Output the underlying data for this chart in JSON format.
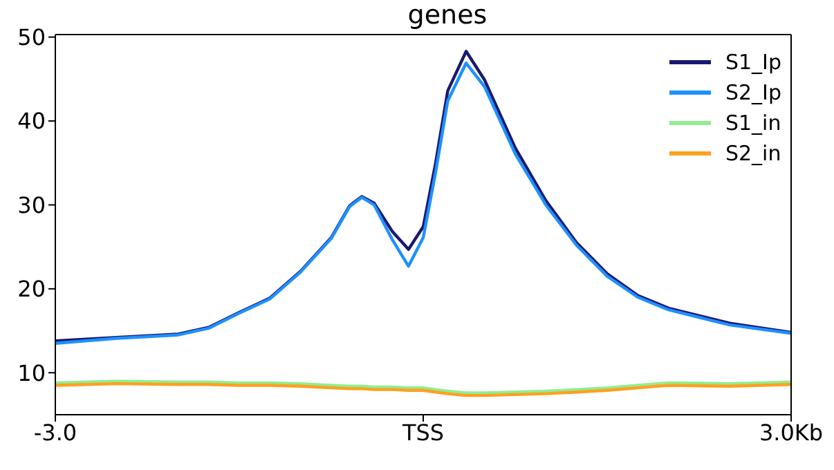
{
  "chart_data": {
    "type": "line",
    "title": "genes",
    "x": [
      -3,
      -2.5,
      -2,
      -1.75,
      -1.5,
      -1.25,
      -1,
      -0.75,
      -0.6,
      -0.5,
      -0.4,
      -0.25,
      -0.12,
      0,
      0.1,
      0.2,
      0.35,
      0.5,
      0.75,
      1,
      1.25,
      1.5,
      1.75,
      2,
      2.5,
      3
    ],
    "series": [
      {
        "name": "S1_Ip",
        "color": "#191970",
        "values": [
          13.8,
          14.2,
          14.6,
          15.4,
          17.2,
          18.9,
          22.1,
          26.1,
          29.9,
          31,
          30.2,
          26.8,
          24.7,
          27.4,
          34.9,
          43.6,
          48.3,
          44.9,
          36.8,
          30.5,
          25.5,
          21.8,
          19.2,
          17.7,
          15.9,
          14.8
        ]
      },
      {
        "name": "S2_Ip",
        "color": "#1e90ff",
        "values": [
          13.5,
          14.1,
          14.5,
          15.3,
          17.1,
          18.8,
          22,
          26,
          29.8,
          30.9,
          30,
          25.8,
          22.7,
          26.1,
          33.8,
          42.4,
          46.9,
          44.1,
          36.1,
          30,
          25.2,
          21.5,
          19,
          17.5,
          15.7,
          14.7
        ]
      },
      {
        "name": "S1_in",
        "color": "#90ee90",
        "values": [
          8.8,
          9,
          8.9,
          8.9,
          8.8,
          8.8,
          8.7,
          8.5,
          8.4,
          8.4,
          8.3,
          8.3,
          8.2,
          8.2,
          8,
          7.8,
          7.6,
          7.6,
          7.7,
          7.8,
          8,
          8.2,
          8.5,
          8.8,
          8.7,
          8.9
        ]
      },
      {
        "name": "S2_in",
        "color": "#ffa020",
        "values": [
          8.5,
          8.7,
          8.6,
          8.6,
          8.5,
          8.5,
          8.4,
          8.2,
          8.1,
          8.1,
          8,
          8,
          7.9,
          7.9,
          7.7,
          7.5,
          7.3,
          7.3,
          7.4,
          7.5,
          7.7,
          7.9,
          8.2,
          8.5,
          8.4,
          8.6
        ]
      }
    ],
    "xlim": [
      -3,
      3
    ],
    "xticks": [
      {
        "value": -3,
        "label": "-3.0"
      },
      {
        "value": 0,
        "label": "TSS"
      },
      {
        "value": 3,
        "label": "3.0Kb"
      }
    ],
    "ylim": [
      5,
      50.3
    ],
    "yticks": [
      10,
      20,
      30,
      40,
      50
    ],
    "legend": "top right",
    "marker": "none",
    "line_style": "solid"
  }
}
